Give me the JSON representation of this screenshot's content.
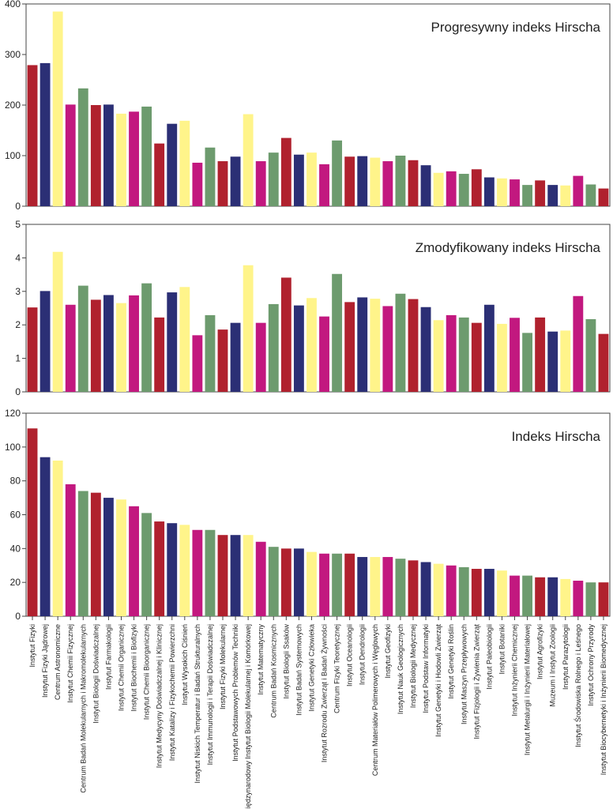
{
  "chart_data": {
    "type": "bar",
    "palette": [
      "#b0212e",
      "#2b2f75",
      "#fff48a",
      "#c2187f",
      "#6d9b6e"
    ],
    "categories": [
      "Instytut Fizyki",
      "Instytut Fizyki Jądrowej",
      "Centrum Astronomiczne",
      "Instytut Chemii Fizycznej",
      "Centrum Badań Molekularnych i Makromolekularnych",
      "Instytut Biologii Doświadczalnej",
      "Instytut Farmakologii",
      "Instytut Chemii Organicznej",
      "Instytut Biochemii i Biofizyki",
      "Instytut Chemii Bioorganicznej",
      "Instytut Medycyny Doświadczalnej i Klinicznej",
      "Instytut Katalizy i Fizykochemii Powierzchni",
      "Instytut Wysokich Ciśnień",
      "Instytut Niskich Temperatur i Badań Strukturalnych",
      "Instytut Immunologii i Terapii Doświadczalnej",
      "Instytut Fizyki Molekularnej",
      "Instytut Podstawowych Problemów Techniki",
      "Międzynarodowy Instytut Biologii Molekularnej i Komórkowej",
      "Instytut Matematyczny",
      "Centrum Badań Kosmicznych",
      "Instytut Biologii Ssaków",
      "Instytut Badań Systemowych",
      "Instytut Genetyki Człowieka",
      "Instytut Rozrodu Zwierząt i Badań Żywności",
      "Centrum Fizyki Teoretycznej",
      "Instytut Oceanologii",
      "Instytut Dendrologii",
      "Centrum Materiałów Polimerowych i Węglowych",
      "Instytut Geofizyki",
      "Instytut Nauk Geologicznych",
      "Instytut Biologii Medycznej",
      "Instytut Podstaw Informatyki",
      "Instytut Genetyki i Hodowli Zwierząt",
      "Instytut Genetyki Roślin",
      "Instytut Maszyn Przepływowych",
      "Instytut Fizjologii i Żywienia Zwierząt",
      "Instytut Paleobiologii",
      "Instytut Botaniki",
      "Instytut Inżynierii Chemicznej",
      "Instytut Metalurgii i Inżynierii Materiałowej",
      "Instytut Agrofizyki",
      "Muzeum i Instytut Zoologii",
      "Instytut Parazytologii",
      "Instytut Środowiska Rolnego i Leśnego",
      "Instytut Ochrony Przyrody",
      "Instytut Biocybernetyki i Inżynierii Biomedycznej"
    ],
    "panels": [
      {
        "title": "Progresywny indeks Hirscha",
        "ylim": [
          0,
          400
        ],
        "yticks": [
          "0",
          "100",
          "200",
          "300",
          "400"
        ],
        "values": [
          279,
          283,
          385,
          201,
          233,
          200,
          201,
          183,
          187,
          197,
          124,
          163,
          169,
          86,
          116,
          89,
          98,
          182,
          89,
          106,
          135,
          102,
          106,
          83,
          130,
          98,
          99,
          96,
          89,
          100,
          91,
          81,
          66,
          69,
          64,
          73,
          57,
          55,
          53,
          42,
          51,
          42,
          41,
          60,
          43,
          35
        ]
      },
      {
        "title": "Zmodyfikowany indeks Hirscha",
        "ylim": [
          0,
          5
        ],
        "yticks": [
          "0",
          "1",
          "2",
          "3",
          "4",
          "5"
        ],
        "values": [
          2.52,
          3.01,
          4.18,
          2.6,
          3.17,
          2.75,
          2.89,
          2.65,
          2.88,
          3.24,
          2.22,
          2.97,
          3.13,
          1.69,
          2.29,
          1.86,
          2.06,
          3.78,
          2.06,
          2.62,
          3.41,
          2.58,
          2.8,
          2.25,
          3.52,
          2.68,
          2.82,
          2.78,
          2.56,
          2.93,
          2.77,
          2.53,
          2.14,
          2.29,
          2.22,
          2.06,
          2.6,
          2.03,
          2.21,
          1.76,
          2.22,
          1.8,
          1.83,
          2.86,
          2.17,
          1.73
        ]
      },
      {
        "title": "Indeks Hirscha",
        "ylim": [
          0,
          120
        ],
        "yticks": [
          "0",
          "20",
          "40",
          "60",
          "80",
          "100",
          "120"
        ],
        "values": [
          111,
          94,
          92,
          78,
          74,
          73,
          70,
          69,
          65,
          61,
          56,
          55,
          54,
          51,
          51,
          48,
          48,
          48,
          44,
          41,
          40,
          40,
          38,
          37,
          37,
          37,
          35,
          35,
          35,
          34,
          33,
          32,
          31,
          30,
          29,
          28,
          28,
          27,
          24,
          24,
          23,
          23,
          22,
          21,
          20,
          20
        ]
      }
    ]
  }
}
